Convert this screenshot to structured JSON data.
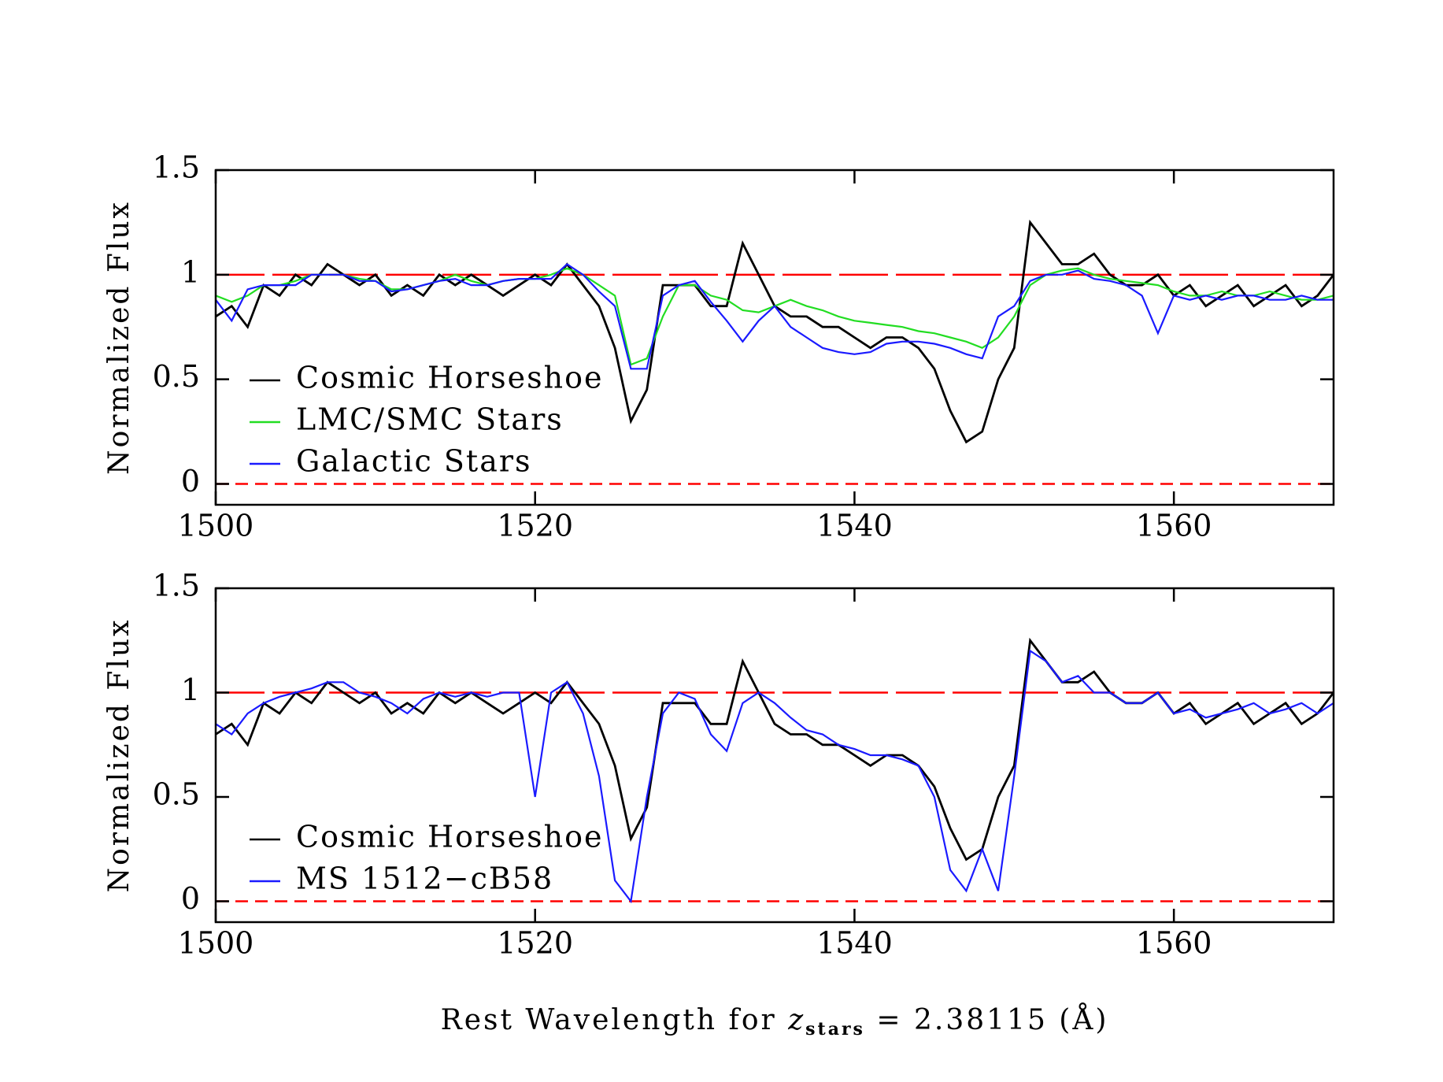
{
  "chart_data": [
    {
      "type": "line",
      "ylabel": "Normalized Flux",
      "x": [
        1500,
        1501,
        1502,
        1503,
        1504,
        1505,
        1506,
        1507,
        1508,
        1509,
        1510,
        1511,
        1512,
        1513,
        1514,
        1515,
        1516,
        1517,
        1518,
        1519,
        1520,
        1521,
        1522,
        1523,
        1524,
        1525,
        1526,
        1527,
        1528,
        1529,
        1530,
        1531,
        1532,
        1533,
        1534,
        1535,
        1536,
        1537,
        1538,
        1539,
        1540,
        1541,
        1542,
        1543,
        1544,
        1545,
        1546,
        1547,
        1548,
        1549,
        1550,
        1551,
        1552,
        1553,
        1554,
        1555,
        1556,
        1557,
        1558,
        1559,
        1560,
        1561,
        1562,
        1563,
        1564,
        1565,
        1566,
        1567,
        1568,
        1569,
        1570
      ],
      "series": [
        {
          "name": "Cosmic Horseshoe",
          "color": "#000000",
          "values": [
            0.8,
            0.85,
            0.75,
            0.95,
            0.9,
            1.0,
            0.95,
            1.05,
            1.0,
            0.95,
            1.0,
            0.9,
            0.95,
            0.9,
            1.0,
            0.95,
            1.0,
            0.95,
            0.9,
            0.95,
            1.0,
            0.95,
            1.05,
            0.95,
            0.85,
            0.65,
            0.3,
            0.45,
            0.95,
            0.95,
            0.95,
            0.85,
            0.85,
            1.15,
            1.0,
            0.85,
            0.8,
            0.8,
            0.75,
            0.75,
            0.7,
            0.65,
            0.7,
            0.7,
            0.65,
            0.55,
            0.35,
            0.2,
            0.25,
            0.5,
            0.65,
            1.25,
            1.15,
            1.05,
            1.05,
            1.1,
            1.0,
            0.95,
            0.95,
            1.0,
            0.9,
            0.95,
            0.85,
            0.9,
            0.95,
            0.85,
            0.9,
            0.95,
            0.85,
            0.9,
            1.0
          ]
        },
        {
          "name": "LMC/SMC Stars",
          "color": "#22dd22",
          "values": [
            0.9,
            0.87,
            0.9,
            0.95,
            0.95,
            0.97,
            1.0,
            1.0,
            1.0,
            0.98,
            0.97,
            0.93,
            0.93,
            0.95,
            0.97,
            1.0,
            0.97,
            0.95,
            0.97,
            0.98,
            0.98,
            1.0,
            1.03,
            1.0,
            0.95,
            0.9,
            0.57,
            0.6,
            0.8,
            0.95,
            0.95,
            0.9,
            0.88,
            0.83,
            0.82,
            0.85,
            0.88,
            0.85,
            0.83,
            0.8,
            0.78,
            0.77,
            0.76,
            0.75,
            0.73,
            0.72,
            0.7,
            0.68,
            0.65,
            0.7,
            0.8,
            0.95,
            1.0,
            1.02,
            1.03,
            1.0,
            0.98,
            0.97,
            0.96,
            0.95,
            0.92,
            0.9,
            0.9,
            0.92,
            0.9,
            0.9,
            0.92,
            0.9,
            0.88,
            0.88,
            0.9
          ]
        },
        {
          "name": "Galactic Stars",
          "color": "#1a1aff",
          "values": [
            0.88,
            0.78,
            0.93,
            0.95,
            0.95,
            0.95,
            1.0,
            1.0,
            1.0,
            0.97,
            0.97,
            0.92,
            0.93,
            0.95,
            0.97,
            0.98,
            0.95,
            0.95,
            0.97,
            0.98,
            0.98,
            0.98,
            1.05,
            1.0,
            0.92,
            0.85,
            0.55,
            0.55,
            0.9,
            0.95,
            0.97,
            0.87,
            0.78,
            0.68,
            0.78,
            0.85,
            0.75,
            0.7,
            0.65,
            0.63,
            0.62,
            0.63,
            0.67,
            0.68,
            0.68,
            0.67,
            0.65,
            0.62,
            0.6,
            0.8,
            0.85,
            0.97,
            1.0,
            1.0,
            1.02,
            0.98,
            0.97,
            0.95,
            0.9,
            0.72,
            0.9,
            0.88,
            0.9,
            0.88,
            0.9,
            0.9,
            0.88,
            0.88,
            0.9,
            0.88,
            0.88
          ]
        }
      ],
      "xlim": [
        1500,
        1570
      ],
      "ylim": [
        -0.1,
        1.5
      ],
      "xticks": [
        1500,
        1520,
        1540,
        1560
      ],
      "yticks": [
        0,
        0.5,
        1,
        1.5
      ],
      "reference_lines": [
        {
          "value": 1,
          "style": "long-dash"
        },
        {
          "value": 0,
          "style": "dash"
        }
      ],
      "reference_color": "#ff0000",
      "legend": "lower left",
      "grid": false
    },
    {
      "type": "line",
      "ylabel": "Normalized Flux",
      "x": [
        1500,
        1501,
        1502,
        1503,
        1504,
        1505,
        1506,
        1507,
        1508,
        1509,
        1510,
        1511,
        1512,
        1513,
        1514,
        1515,
        1516,
        1517,
        1518,
        1519,
        1520,
        1521,
        1522,
        1523,
        1524,
        1525,
        1526,
        1527,
        1528,
        1529,
        1530,
        1531,
        1532,
        1533,
        1534,
        1535,
        1536,
        1537,
        1538,
        1539,
        1540,
        1541,
        1542,
        1543,
        1544,
        1545,
        1546,
        1547,
        1548,
        1549,
        1550,
        1551,
        1552,
        1553,
        1554,
        1555,
        1556,
        1557,
        1558,
        1559,
        1560,
        1561,
        1562,
        1563,
        1564,
        1565,
        1566,
        1567,
        1568,
        1569,
        1570
      ],
      "series": [
        {
          "name": "Cosmic Horseshoe",
          "color": "#000000",
          "values": [
            0.8,
            0.85,
            0.75,
            0.95,
            0.9,
            1.0,
            0.95,
            1.05,
            1.0,
            0.95,
            1.0,
            0.9,
            0.95,
            0.9,
            1.0,
            0.95,
            1.0,
            0.95,
            0.9,
            0.95,
            1.0,
            0.95,
            1.05,
            0.95,
            0.85,
            0.65,
            0.3,
            0.45,
            0.95,
            0.95,
            0.95,
            0.85,
            0.85,
            1.15,
            1.0,
            0.85,
            0.8,
            0.8,
            0.75,
            0.75,
            0.7,
            0.65,
            0.7,
            0.7,
            0.65,
            0.55,
            0.35,
            0.2,
            0.25,
            0.5,
            0.65,
            1.25,
            1.15,
            1.05,
            1.05,
            1.1,
            1.0,
            0.95,
            0.95,
            1.0,
            0.9,
            0.95,
            0.85,
            0.9,
            0.95,
            0.85,
            0.9,
            0.95,
            0.85,
            0.9,
            1.0
          ]
        },
        {
          "name": "MS 1512−cB58",
          "color": "#1a1aff",
          "values": [
            0.85,
            0.8,
            0.9,
            0.95,
            0.98,
            1.0,
            1.02,
            1.05,
            1.05,
            1.0,
            0.98,
            0.95,
            0.9,
            0.97,
            1.0,
            0.98,
            1.0,
            0.98,
            1.0,
            1.0,
            0.5,
            1.0,
            1.05,
            0.9,
            0.6,
            0.1,
            0.0,
            0.5,
            0.9,
            1.0,
            0.97,
            0.8,
            0.72,
            0.95,
            1.0,
            0.95,
            0.88,
            0.82,
            0.8,
            0.75,
            0.73,
            0.7,
            0.7,
            0.68,
            0.65,
            0.5,
            0.15,
            0.05,
            0.25,
            0.05,
            0.6,
            1.2,
            1.15,
            1.05,
            1.08,
            1.0,
            1.0,
            0.95,
            0.95,
            1.0,
            0.9,
            0.92,
            0.88,
            0.9,
            0.92,
            0.95,
            0.9,
            0.92,
            0.95,
            0.9,
            0.95
          ]
        }
      ],
      "xlim": [
        1500,
        1570
      ],
      "ylim": [
        -0.1,
        1.5
      ],
      "xticks": [
        1500,
        1520,
        1540,
        1560
      ],
      "yticks": [
        0,
        0.5,
        1,
        1.5
      ],
      "reference_lines": [
        {
          "value": 1,
          "style": "long-dash"
        },
        {
          "value": 0,
          "style": "dash"
        }
      ],
      "reference_color": "#ff0000",
      "legend": "lower left",
      "grid": false
    }
  ],
  "xlabel": {
    "prefix": "Rest Wavelength for ",
    "variable": "z",
    "subscript": "stars",
    "suffix": " = 2.38115 (Å)"
  }
}
